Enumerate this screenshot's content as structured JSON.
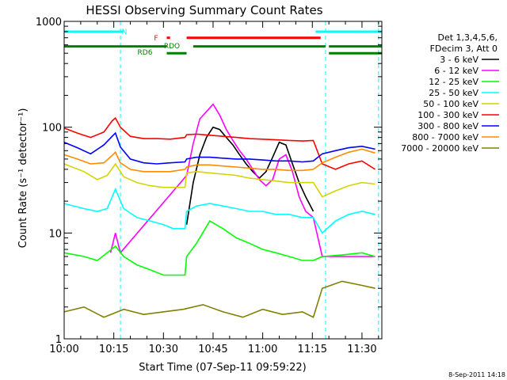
{
  "chart_data": {
    "type": "line",
    "title": "HESSI Observing Summary Count Rates",
    "xlabel": "Start Time (07-Sep-11 09:59:22)",
    "ylabel": "Count Rate (s⁻¹ detector⁻¹)",
    "yscale": "log",
    "xlim_min": [
      0,
      96
    ],
    "ylim": [
      1,
      1000
    ],
    "x_ticks": [
      {
        "v": 0,
        "label": "10:00"
      },
      {
        "v": 15,
        "label": "10:15"
      },
      {
        "v": 30,
        "label": "10:30"
      },
      {
        "v": 45,
        "label": "10:45"
      },
      {
        "v": 60,
        "label": "11:00"
      },
      {
        "v": 75,
        "label": "11:15"
      },
      {
        "v": 90,
        "label": "11:30"
      }
    ],
    "y_ticks": [
      {
        "v": 1,
        "label": "1"
      },
      {
        "v": 10,
        "label": "10"
      },
      {
        "v": 100,
        "label": "100"
      },
      {
        "v": 1000,
        "label": "1000"
      }
    ],
    "legend": {
      "placement": "right",
      "header": [
        "Det 1,3,4,5,6,",
        "FDecim 3, Att 0"
      ]
    },
    "series": [
      {
        "name": "3 - 6 keV",
        "color": "#000000",
        "x": [
          37,
          39,
          41,
          43,
          45,
          47,
          49,
          51,
          53,
          55,
          57,
          59,
          61,
          63,
          65,
          67,
          69,
          71,
          73,
          75.3
        ],
        "values": [
          12,
          30,
          55,
          80,
          100,
          95,
          80,
          68,
          55,
          45,
          38,
          33,
          38,
          52,
          72,
          68,
          45,
          30,
          22,
          16
        ]
      },
      {
        "name": "6 - 12 keV",
        "color": "#ff00ff",
        "x": [
          14,
          15.5,
          17,
          37,
          39,
          41,
          43,
          45,
          47,
          49,
          51,
          53,
          55,
          57,
          59,
          61,
          63,
          65,
          67,
          69,
          71,
          73,
          75.3,
          78,
          84,
          90,
          94
        ],
        "values": [
          6.5,
          10,
          6.5,
          35,
          70,
          120,
          140,
          165,
          130,
          95,
          75,
          60,
          50,
          40,
          32,
          28,
          32,
          50,
          55,
          38,
          22,
          16,
          14,
          6,
          6,
          6,
          6
        ]
      },
      {
        "name": "12 - 25 keV",
        "color": "#00ff00",
        "x": [
          0,
          6,
          10,
          13,
          15.5,
          18,
          22,
          26,
          30,
          34,
          36.5,
          37,
          40,
          44,
          48,
          52,
          56,
          60,
          64,
          68,
          72,
          75.3,
          78,
          84,
          90,
          94
        ],
        "values": [
          6.5,
          6,
          5.5,
          6.5,
          7.5,
          6,
          5,
          4.5,
          4,
          4,
          4,
          6,
          8,
          13,
          11,
          9,
          8,
          7,
          6.5,
          6,
          5.5,
          5.5,
          6,
          6.2,
          6.5,
          6
        ]
      },
      {
        "name": "25 - 50 keV",
        "color": "#00ffff",
        "x": [
          0,
          6,
          10,
          13,
          15.5,
          18,
          22,
          26,
          30,
          33,
          36.5,
          37,
          40,
          44,
          48,
          52,
          56,
          60,
          64,
          68,
          72,
          75.3,
          78,
          82,
          86,
          90,
          94
        ],
        "values": [
          19,
          17,
          16,
          17,
          26,
          17,
          14,
          13,
          12,
          11,
          11,
          16,
          18,
          19,
          18,
          17,
          16,
          16,
          15,
          15,
          14,
          14,
          10,
          13,
          15,
          16,
          15
        ]
      },
      {
        "name": "50 - 100 keV",
        "color": "#d4d400",
        "x": [
          0,
          6,
          10,
          13,
          15.5,
          18,
          22,
          26,
          30,
          33,
          36.5,
          37,
          40,
          44,
          48,
          52,
          56,
          60,
          64,
          68,
          72,
          75.3,
          78,
          82,
          86,
          90,
          94
        ],
        "values": [
          45,
          38,
          32,
          35,
          45,
          34,
          30,
          28,
          27,
          27,
          27,
          37,
          38,
          37,
          36,
          35,
          33,
          32,
          31,
          30,
          30,
          30,
          22,
          25,
          28,
          30,
          29
        ]
      },
      {
        "name": "100 - 300 keV",
        "color": "#ff0000",
        "x": [
          0,
          4,
          8,
          12,
          14.5,
          15.5,
          17,
          20,
          24,
          28,
          32,
          36.5,
          37,
          40,
          44,
          48,
          52,
          56,
          60,
          64,
          68,
          72,
          75.3,
          78,
          82,
          86,
          90,
          94
        ],
        "values": [
          98,
          88,
          80,
          90,
          115,
          122,
          100,
          82,
          78,
          78,
          77,
          80,
          85,
          86,
          84,
          82,
          80,
          78,
          77,
          76,
          75,
          74,
          75,
          45,
          40,
          45,
          48,
          40
        ]
      },
      {
        "name": "300 - 800 keV",
        "color": "#0000ff",
        "x": [
          0,
          4,
          8,
          12,
          14.5,
          15.5,
          17,
          20,
          24,
          28,
          32,
          36.5,
          37,
          40,
          44,
          48,
          52,
          56,
          60,
          64,
          68,
          72,
          75.3,
          78,
          82,
          86,
          90,
          94
        ],
        "values": [
          72,
          64,
          56,
          68,
          82,
          88,
          65,
          50,
          46,
          45,
          46,
          47,
          50,
          52,
          52,
          51,
          50,
          50,
          49,
          48,
          48,
          47,
          48,
          56,
          60,
          64,
          66,
          62
        ]
      },
      {
        "name": "800 - 7000 keV",
        "color": "#ff8c00",
        "x": [
          0,
          4,
          8,
          12,
          14.5,
          15.5,
          17,
          20,
          24,
          28,
          32,
          36.5,
          37,
          40,
          44,
          48,
          52,
          56,
          60,
          64,
          68,
          72,
          75.3,
          78,
          82,
          86,
          90,
          94
        ],
        "values": [
          55,
          50,
          45,
          46,
          54,
          58,
          46,
          40,
          38,
          38,
          38,
          40,
          42,
          44,
          44,
          43,
          42,
          41,
          40,
          40,
          39,
          39,
          40,
          46,
          52,
          58,
          62,
          57
        ]
      },
      {
        "name": "7000 - 20000 keV",
        "color": "#808000",
        "x": [
          0,
          6,
          12,
          18,
          24,
          30,
          36,
          42,
          48,
          54,
          60,
          66,
          72,
          75.3,
          78,
          84,
          90,
          94
        ],
        "values": [
          1.8,
          2,
          1.6,
          1.9,
          1.7,
          1.8,
          1.9,
          2.1,
          1.8,
          1.6,
          1.9,
          1.7,
          1.8,
          1.6,
          3,
          3.5,
          3.2,
          3
        ]
      }
    ],
    "annotations": {
      "bars": [
        {
          "label": "N",
          "color": "#00ffff",
          "y": 800,
          "segments": [
            [
              0,
              18
            ],
            [
              76,
              96
            ]
          ]
        },
        {
          "label": "F",
          "color": "#ff0000",
          "y": 700,
          "segments": [
            [
              31,
              32
            ],
            [
              37,
              77.5
            ]
          ]
        },
        {
          "label": "RDO",
          "color": "#008000",
          "y": 580,
          "segments": [
            [
              0,
              31
            ],
            [
              39,
              79
            ],
            [
              80,
              96
            ]
          ]
        },
        {
          "label": "RD6",
          "color": "#008000",
          "y": 500,
          "segments": [
            [
              31,
              37
            ],
            [
              80,
              96
            ]
          ]
        }
      ],
      "cyan_dashed_x": [
        17,
        79,
        95
      ]
    },
    "footer_date": "8-Sep-2011 14:18"
  }
}
